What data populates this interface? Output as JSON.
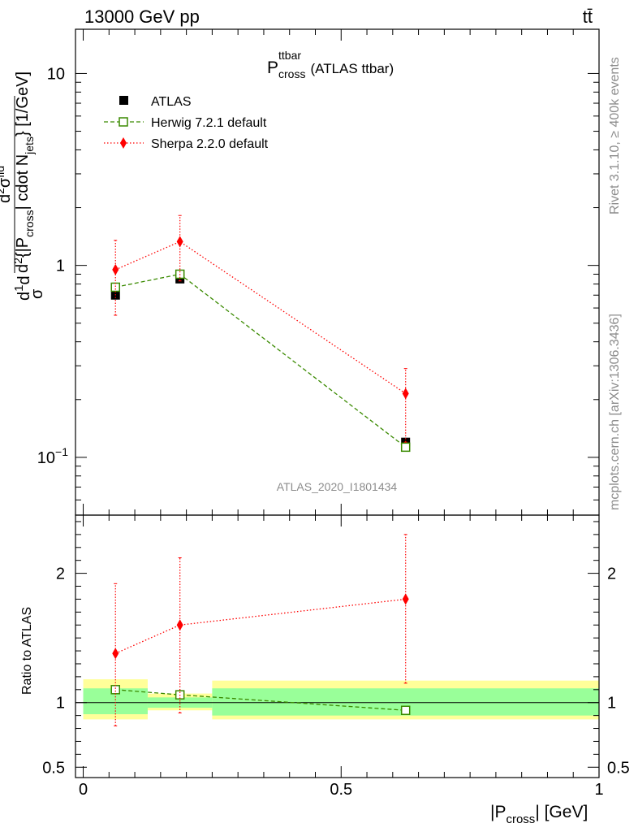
{
  "header": {
    "left": "13000 GeV pp",
    "right": "tt̄"
  },
  "side_text": {
    "rivet": "Rivet 3.1.10, ≥ 400k events",
    "mcplots": "mcplots.cern.ch [arXiv:1306.3436]"
  },
  "chart_data": [
    {
      "type": "line",
      "panel": "main",
      "title_main": "P",
      "title_sup": "ttbar",
      "title_sub": "cross",
      "title_suffix": "(ATLAS ttbar)",
      "analysis_label": "ATLAS_2020_I1801434",
      "ylabel_parts": [
        "d",
        "1",
        "d",
        "σ",
        "d",
        "2",
        "{|P",
        "cross",
        "| cdot N",
        "jets",
        "} [1/GeV]",
        "d",
        "2",
        "σ",
        "fid"
      ],
      "yscale": "log",
      "ylim": [
        0.05,
        17
      ],
      "xlim": [
        -0.015,
        1.0
      ],
      "yticks": [
        {
          "v": 0.1,
          "base": "10",
          "exp": "−1"
        },
        {
          "v": 1,
          "label": "1"
        },
        {
          "v": 10,
          "label": "10"
        }
      ],
      "legend_position": "top-left",
      "series": [
        {
          "name": "ATLAS",
          "color": "#000000",
          "marker": "square-filled",
          "x": [
            0.0625,
            0.1875,
            0.625
          ],
          "y": [
            0.7,
            0.85,
            0.12
          ],
          "style": "none"
        },
        {
          "name": "Herwig 7.2.1 default",
          "color": "#3a8a00",
          "marker": "square-open",
          "x": [
            0.0625,
            0.1875,
            0.625
          ],
          "y": [
            0.77,
            0.9,
            0.113
          ],
          "style": "dashed",
          "yerr_lo": [
            0.76,
            0.89,
            0.11
          ],
          "yerr_hi": [
            0.78,
            0.91,
            0.116
          ]
        },
        {
          "name": "Sherpa 2.2.0 default",
          "color": "#ff0000",
          "marker": "diamond-filled",
          "x": [
            0.0625,
            0.1875,
            0.625
          ],
          "y": [
            0.95,
            1.33,
            0.215
          ],
          "style": "dotted",
          "yerr_lo": [
            0.55,
            0.83,
            0.12
          ],
          "yerr_hi": [
            1.35,
            1.82,
            0.29
          ]
        }
      ]
    },
    {
      "type": "line",
      "panel": "ratio",
      "ylabel": "Ratio to ATLAS",
      "xlabel_pre": "|P",
      "xlabel_sub": "cross",
      "xlabel_post": "| [GeV]",
      "ylim": [
        0.42,
        2.45
      ],
      "yticks": [
        {
          "v": 0.5,
          "label": "0.5"
        },
        {
          "v": 1,
          "label": "1"
        },
        {
          "v": 2,
          "label": "2"
        }
      ],
      "xticks": [
        {
          "v": 0,
          "label": "0"
        },
        {
          "v": 0.5,
          "label": "0.5"
        },
        {
          "v": 1,
          "label": "1"
        }
      ],
      "bands": [
        {
          "x0": 0.0,
          "x1": 0.125,
          "y_lo": 0.87,
          "y_hi": 1.18,
          "in_lo": 0.91,
          "in_hi": 1.11
        },
        {
          "x0": 0.125,
          "x1": 0.25,
          "y_lo": 0.94,
          "y_hi": 1.07,
          "in_lo": 0.96,
          "in_hi": 1.04
        },
        {
          "x0": 0.25,
          "x1": 1.0,
          "y_lo": 0.87,
          "y_hi": 1.17,
          "in_lo": 0.9,
          "in_hi": 1.11
        }
      ],
      "band_colors": {
        "outer": "#ffff99",
        "inner": "#99ff99"
      },
      "series": [
        {
          "name": "Herwig 7.2.1 default",
          "color": "#3a8a00",
          "marker": "square-open",
          "x": [
            0.0625,
            0.1875,
            0.625
          ],
          "y": [
            1.1,
            1.06,
            0.94
          ],
          "style": "dashed",
          "yerr_lo": [
            1.08,
            1.04,
            0.92
          ],
          "yerr_hi": [
            1.12,
            1.08,
            0.96
          ]
        },
        {
          "name": "Sherpa 2.2.0 default",
          "color": "#ff0000",
          "marker": "diamond-filled",
          "x": [
            0.0625,
            0.1875,
            0.625
          ],
          "y": [
            1.38,
            1.6,
            1.8
          ],
          "style": "dotted",
          "yerr_lo": [
            0.82,
            0.92,
            1.15
          ],
          "yerr_hi": [
            1.92,
            2.12,
            2.3
          ]
        }
      ]
    }
  ]
}
